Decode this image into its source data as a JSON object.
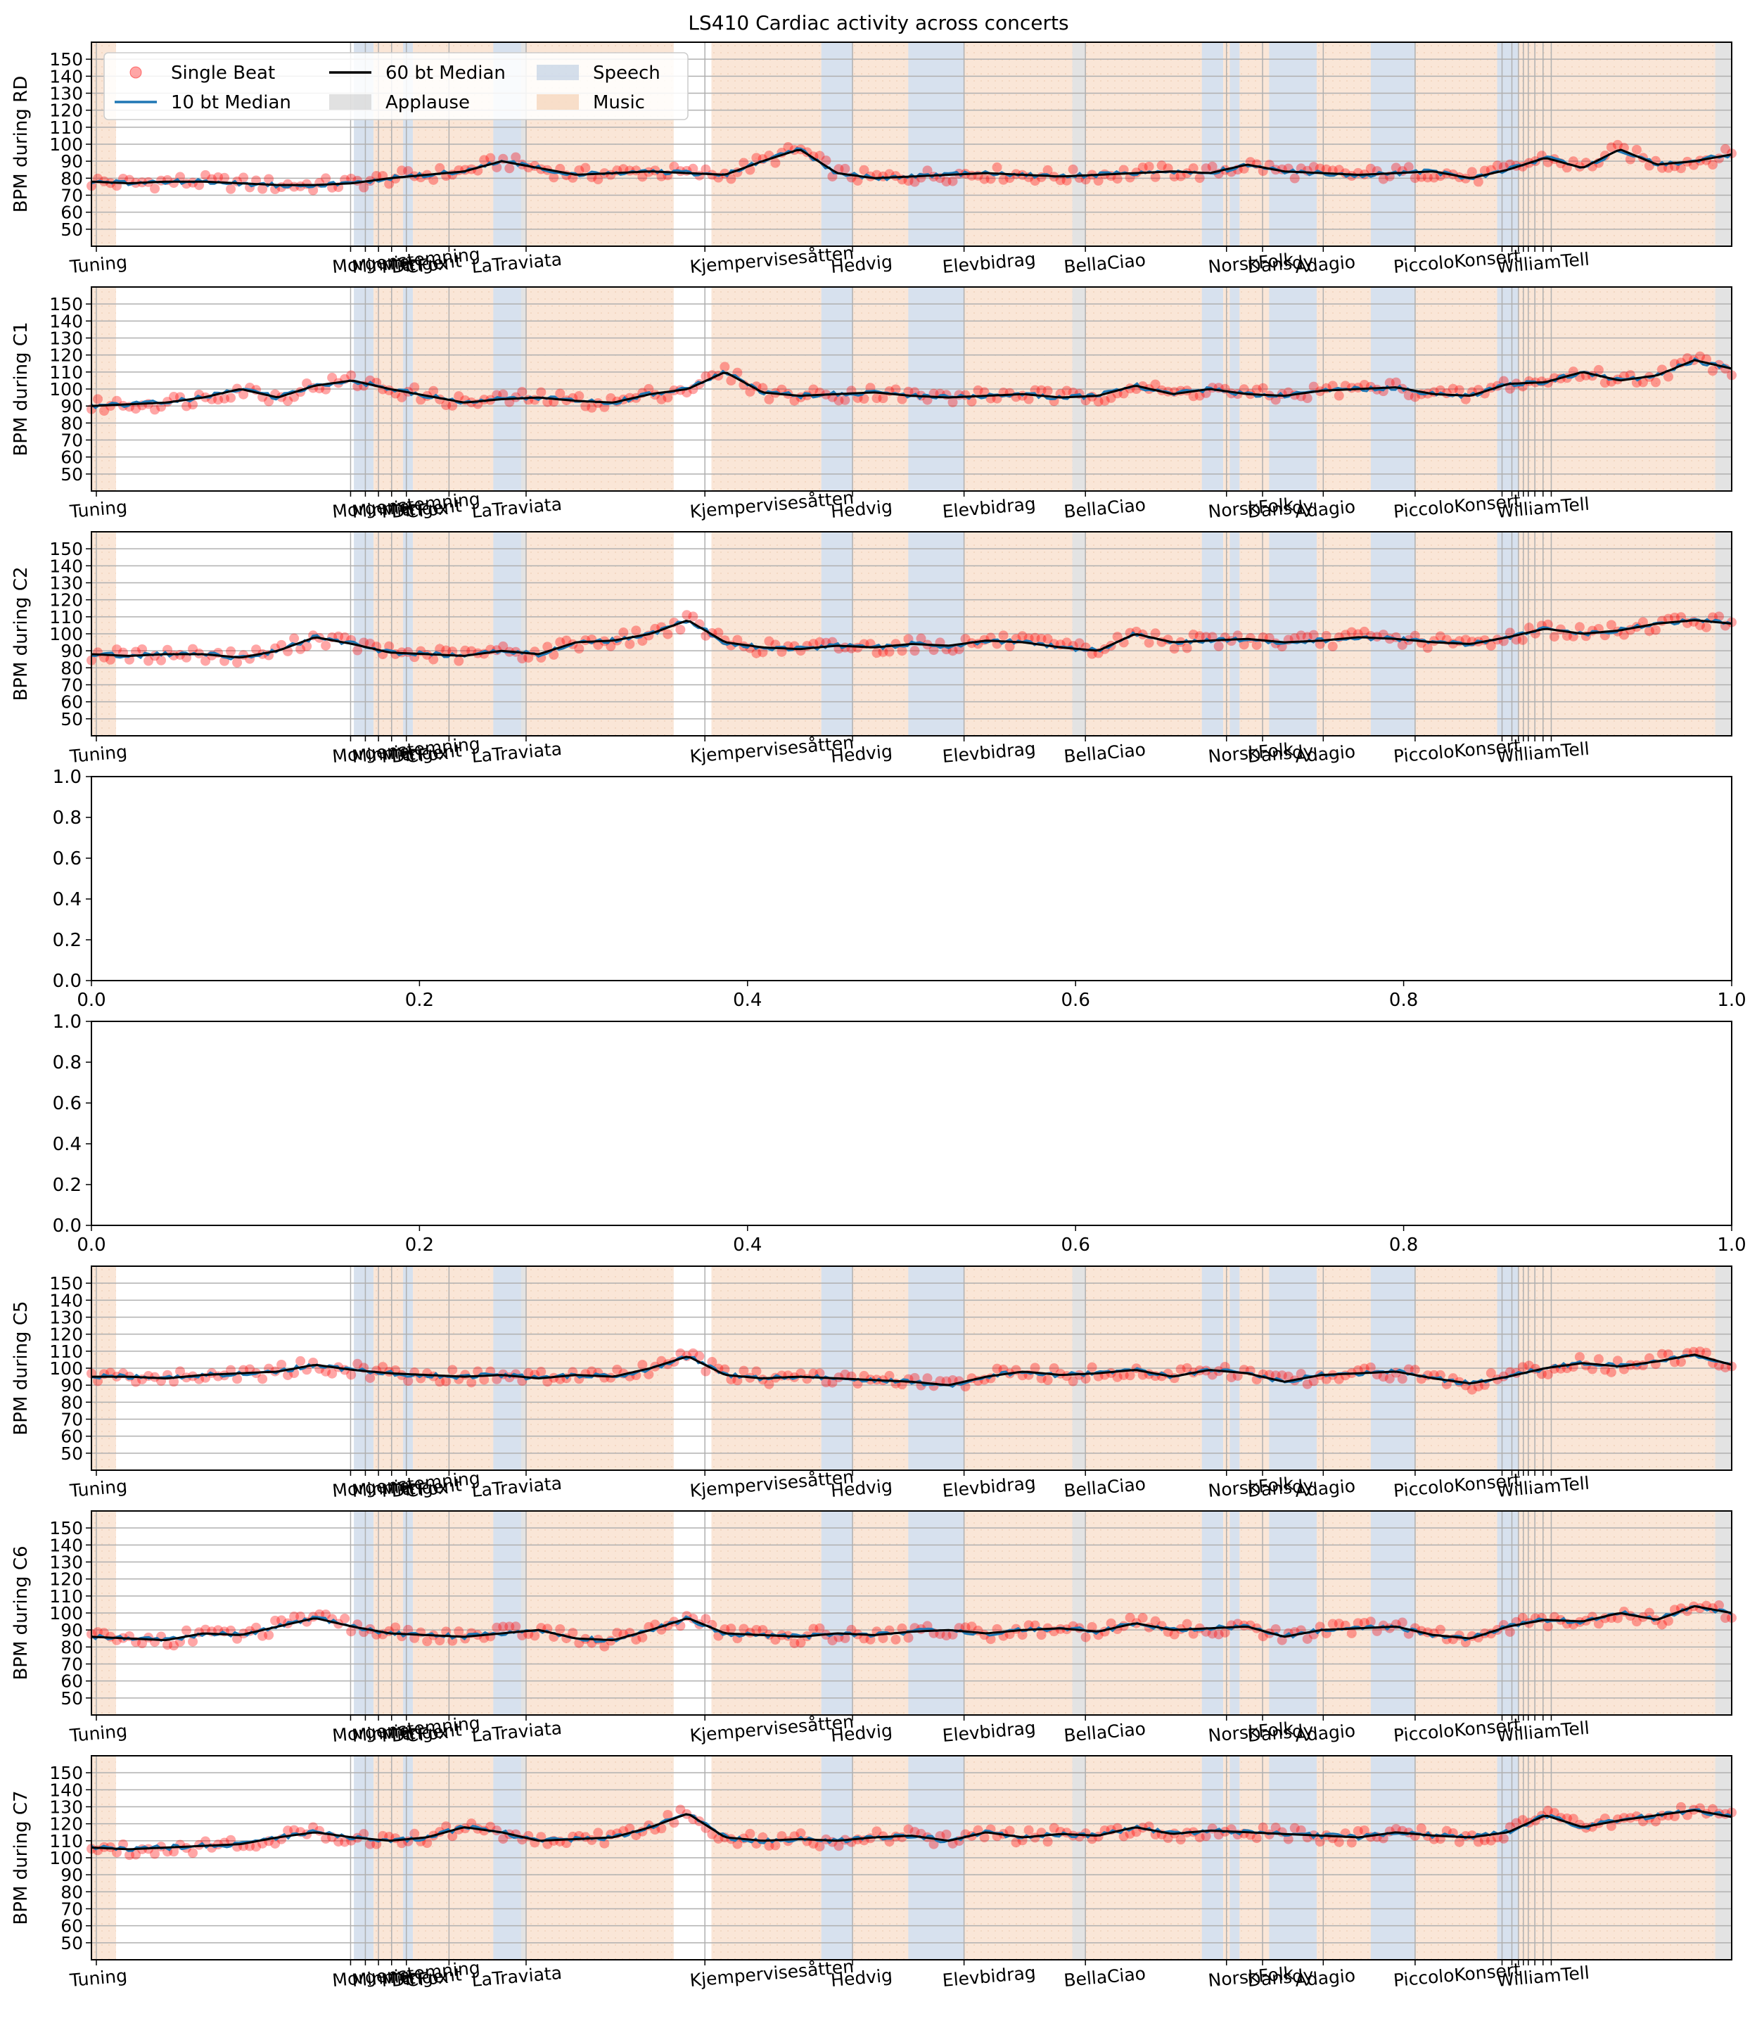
{
  "title": "LS410 Cardiac activity across concerts",
  "legend": {
    "placement": "upper-left",
    "entries": [
      {
        "label": "Single Beat",
        "kind": "marker",
        "color": "#ff0000"
      },
      {
        "label": "10 bt Median",
        "kind": "line",
        "color": "#1f77b4"
      },
      {
        "label": "60 bt Median",
        "kind": "line",
        "color": "#000000"
      },
      {
        "label": "Applause",
        "kind": "patch",
        "color": "#c8c8c8"
      },
      {
        "label": "Speech",
        "kind": "patch",
        "color": "#b0c4de"
      },
      {
        "label": "Music",
        "kind": "patch",
        "color": "#f4c9a8"
      }
    ]
  },
  "colors": {
    "single_beat": "#ff0000",
    "median_10": "#1f77b4",
    "median_60": "#000000",
    "applause": "#c8c8c8",
    "speech": "#b0c4de",
    "music": "#f4c9a8",
    "grid": "#b0b0b0"
  },
  "chart_data": [
    {
      "type": "line",
      "ylabel": "BPM during RD",
      "ylim": [
        40,
        160
      ],
      "yticks": [
        50,
        60,
        70,
        80,
        90,
        100,
        110,
        120,
        130,
        140,
        150
      ],
      "grid": true,
      "tick_labels": [
        "Tuning",
        "Morgenstemning",
        "Minnie",
        "Mitt",
        "Dirigent",
        "CFox",
        "LaTraviata",
        "Kjempervisesåtten",
        "Hedvig",
        "Elevbidrag",
        "BellaCiao",
        "NorskFolk",
        "Dansdy",
        "Adagio",
        "PiccoloKonsert",
        "WilliamTell"
      ],
      "bpm_60_median": [
        78,
        77,
        78,
        78,
        77,
        76,
        76,
        77,
        80,
        82,
        84,
        90,
        86,
        82,
        83,
        84,
        83,
        82,
        90,
        97,
        83,
        80,
        81,
        82,
        83,
        82,
        81,
        82,
        83,
        84,
        83,
        88,
        84,
        83,
        82,
        83,
        84,
        80,
        85,
        92,
        86,
        97,
        88,
        90,
        94
      ]
    },
    {
      "type": "line",
      "ylabel": "BPM during C1",
      "ylim": [
        40,
        160
      ],
      "yticks": [
        50,
        60,
        70,
        80,
        90,
        100,
        110,
        120,
        130,
        140,
        150
      ],
      "grid": true,
      "tick_labels": [
        "Tuning",
        "Morgenstemning",
        "Minnie",
        "Mitt",
        "Dirigent",
        "CFox",
        "LaTraviata",
        "Kjempervisesåtten",
        "Hedvig",
        "Elevbidrag",
        "BellaCiao",
        "NorskFolk",
        "Dansdy",
        "Adagio",
        "PiccoloKonsert",
        "WilliamTell"
      ],
      "bpm_60_median": [
        90,
        91,
        92,
        95,
        100,
        95,
        102,
        105,
        100,
        96,
        92,
        94,
        95,
        93,
        92,
        97,
        100,
        110,
        98,
        96,
        97,
        98,
        96,
        95,
        96,
        97,
        95,
        96,
        102,
        97,
        100,
        97,
        96,
        99,
        100,
        101,
        97,
        96,
        103,
        104,
        110,
        105,
        108,
        117,
        112
      ]
    },
    {
      "type": "line",
      "ylabel": "BPM during C2",
      "ylim": [
        40,
        160
      ],
      "yticks": [
        50,
        60,
        70,
        80,
        90,
        100,
        110,
        120,
        130,
        140,
        150
      ],
      "grid": true,
      "tick_labels": [
        "Tuning",
        "Morgenstemning",
        "Minnie",
        "Mitt",
        "Dirigent",
        "CFox",
        "LaTraviata",
        "Kjempervisesåtten",
        "Hedvig",
        "Elevbidrag",
        "BellaCiao",
        "NorskFolk",
        "Dansdy",
        "Adagio",
        "PiccoloKonsert",
        "WilliamTell"
      ],
      "bpm_60_median": [
        88,
        87,
        88,
        88,
        86,
        90,
        98,
        94,
        89,
        88,
        87,
        90,
        88,
        95,
        96,
        100,
        108,
        95,
        92,
        91,
        93,
        92,
        94,
        93,
        96,
        95,
        92,
        90,
        100,
        95,
        96,
        97,
        95,
        96,
        98,
        97,
        95,
        94,
        98,
        103,
        100,
        102,
        106,
        108,
        106
      ]
    },
    {
      "type": "empty",
      "xlim": [
        0.0,
        1.0
      ],
      "ylim": [
        0.0,
        1.0
      ],
      "xticks": [
        "0.0",
        "0.2",
        "0.4",
        "0.6",
        "0.8",
        "1.0"
      ],
      "yticks": [
        "0.0",
        "0.2",
        "0.4",
        "0.6",
        "0.8",
        "1.0"
      ]
    },
    {
      "type": "empty",
      "xlim": [
        0.0,
        1.0
      ],
      "ylim": [
        0.0,
        1.0
      ],
      "xticks": [
        "0.0",
        "0.2",
        "0.4",
        "0.6",
        "0.8",
        "1.0"
      ],
      "yticks": [
        "0.0",
        "0.2",
        "0.4",
        "0.6",
        "0.8",
        "1.0"
      ]
    },
    {
      "type": "line",
      "ylabel": "BPM during C5",
      "ylim": [
        40,
        160
      ],
      "yticks": [
        50,
        60,
        70,
        80,
        90,
        100,
        110,
        120,
        130,
        140,
        150
      ],
      "grid": true,
      "tick_labels": [
        "Tuning",
        "Morgenstemning",
        "Minnie",
        "Mitt",
        "Dirigent",
        "CFox",
        "LaTraviata",
        "Kjempervisesåtten",
        "Hedvig",
        "Elevbidrag",
        "BellaCiao",
        "NorskFolk",
        "Dansdy",
        "Adagio",
        "PiccoloKonsert",
        "WilliamTell"
      ],
      "bpm_60_median": [
        95,
        95,
        94,
        96,
        97,
        98,
        102,
        99,
        97,
        96,
        95,
        96,
        94,
        96,
        95,
        100,
        107,
        96,
        94,
        95,
        94,
        93,
        92,
        90,
        95,
        98,
        96,
        97,
        99,
        95,
        99,
        97,
        92,
        96,
        97,
        98,
        94,
        91,
        95,
        100,
        103,
        101,
        104,
        108,
        102
      ]
    },
    {
      "type": "line",
      "ylabel": "BPM during C6",
      "ylim": [
        40,
        160
      ],
      "yticks": [
        50,
        60,
        70,
        80,
        90,
        100,
        110,
        120,
        130,
        140,
        150
      ],
      "grid": true,
      "tick_labels": [
        "Tuning",
        "Morgenstemning",
        "Minnie",
        "Mitt",
        "Dirigent",
        "CFox",
        "LaTraviata",
        "Kjempervisesåtten",
        "Hedvig",
        "Elevbidrag",
        "BellaCiao",
        "NorskFolk",
        "Dansdy",
        "Adagio",
        "PiccoloKonsert",
        "WilliamTell"
      ],
      "bpm_60_median": [
        86,
        85,
        84,
        88,
        87,
        92,
        97,
        92,
        88,
        87,
        86,
        88,
        90,
        85,
        84,
        90,
        97,
        88,
        87,
        86,
        88,
        87,
        89,
        90,
        88,
        90,
        91,
        89,
        94,
        90,
        91,
        92,
        86,
        90,
        91,
        92,
        87,
        85,
        92,
        96,
        95,
        100,
        96,
        104,
        100
      ]
    },
    {
      "type": "line",
      "ylabel": "BPM during C7",
      "ylim": [
        40,
        160
      ],
      "yticks": [
        50,
        60,
        70,
        80,
        90,
        100,
        110,
        120,
        130,
        140,
        150
      ],
      "grid": true,
      "tick_labels": [
        "Tuning",
        "Morgenstemning",
        "Minnie",
        "Mitt",
        "Dirigent",
        "CFox",
        "LaTraviata",
        "Kjempervisesåtten",
        "Hedvig",
        "Elevbidrag",
        "BellaCiao",
        "NorskFolk",
        "Dansdy",
        "Adagio",
        "PiccoloKonsert",
        "WilliamTell"
      ],
      "bpm_60_median": [
        106,
        105,
        106,
        107,
        108,
        112,
        115,
        112,
        110,
        112,
        118,
        115,
        110,
        111,
        112,
        118,
        126,
        112,
        110,
        111,
        110,
        112,
        113,
        110,
        115,
        112,
        114,
        113,
        118,
        114,
        116,
        115,
        114,
        113,
        112,
        115,
        113,
        112,
        115,
        125,
        118,
        122,
        125,
        128,
        124
      ]
    }
  ]
}
